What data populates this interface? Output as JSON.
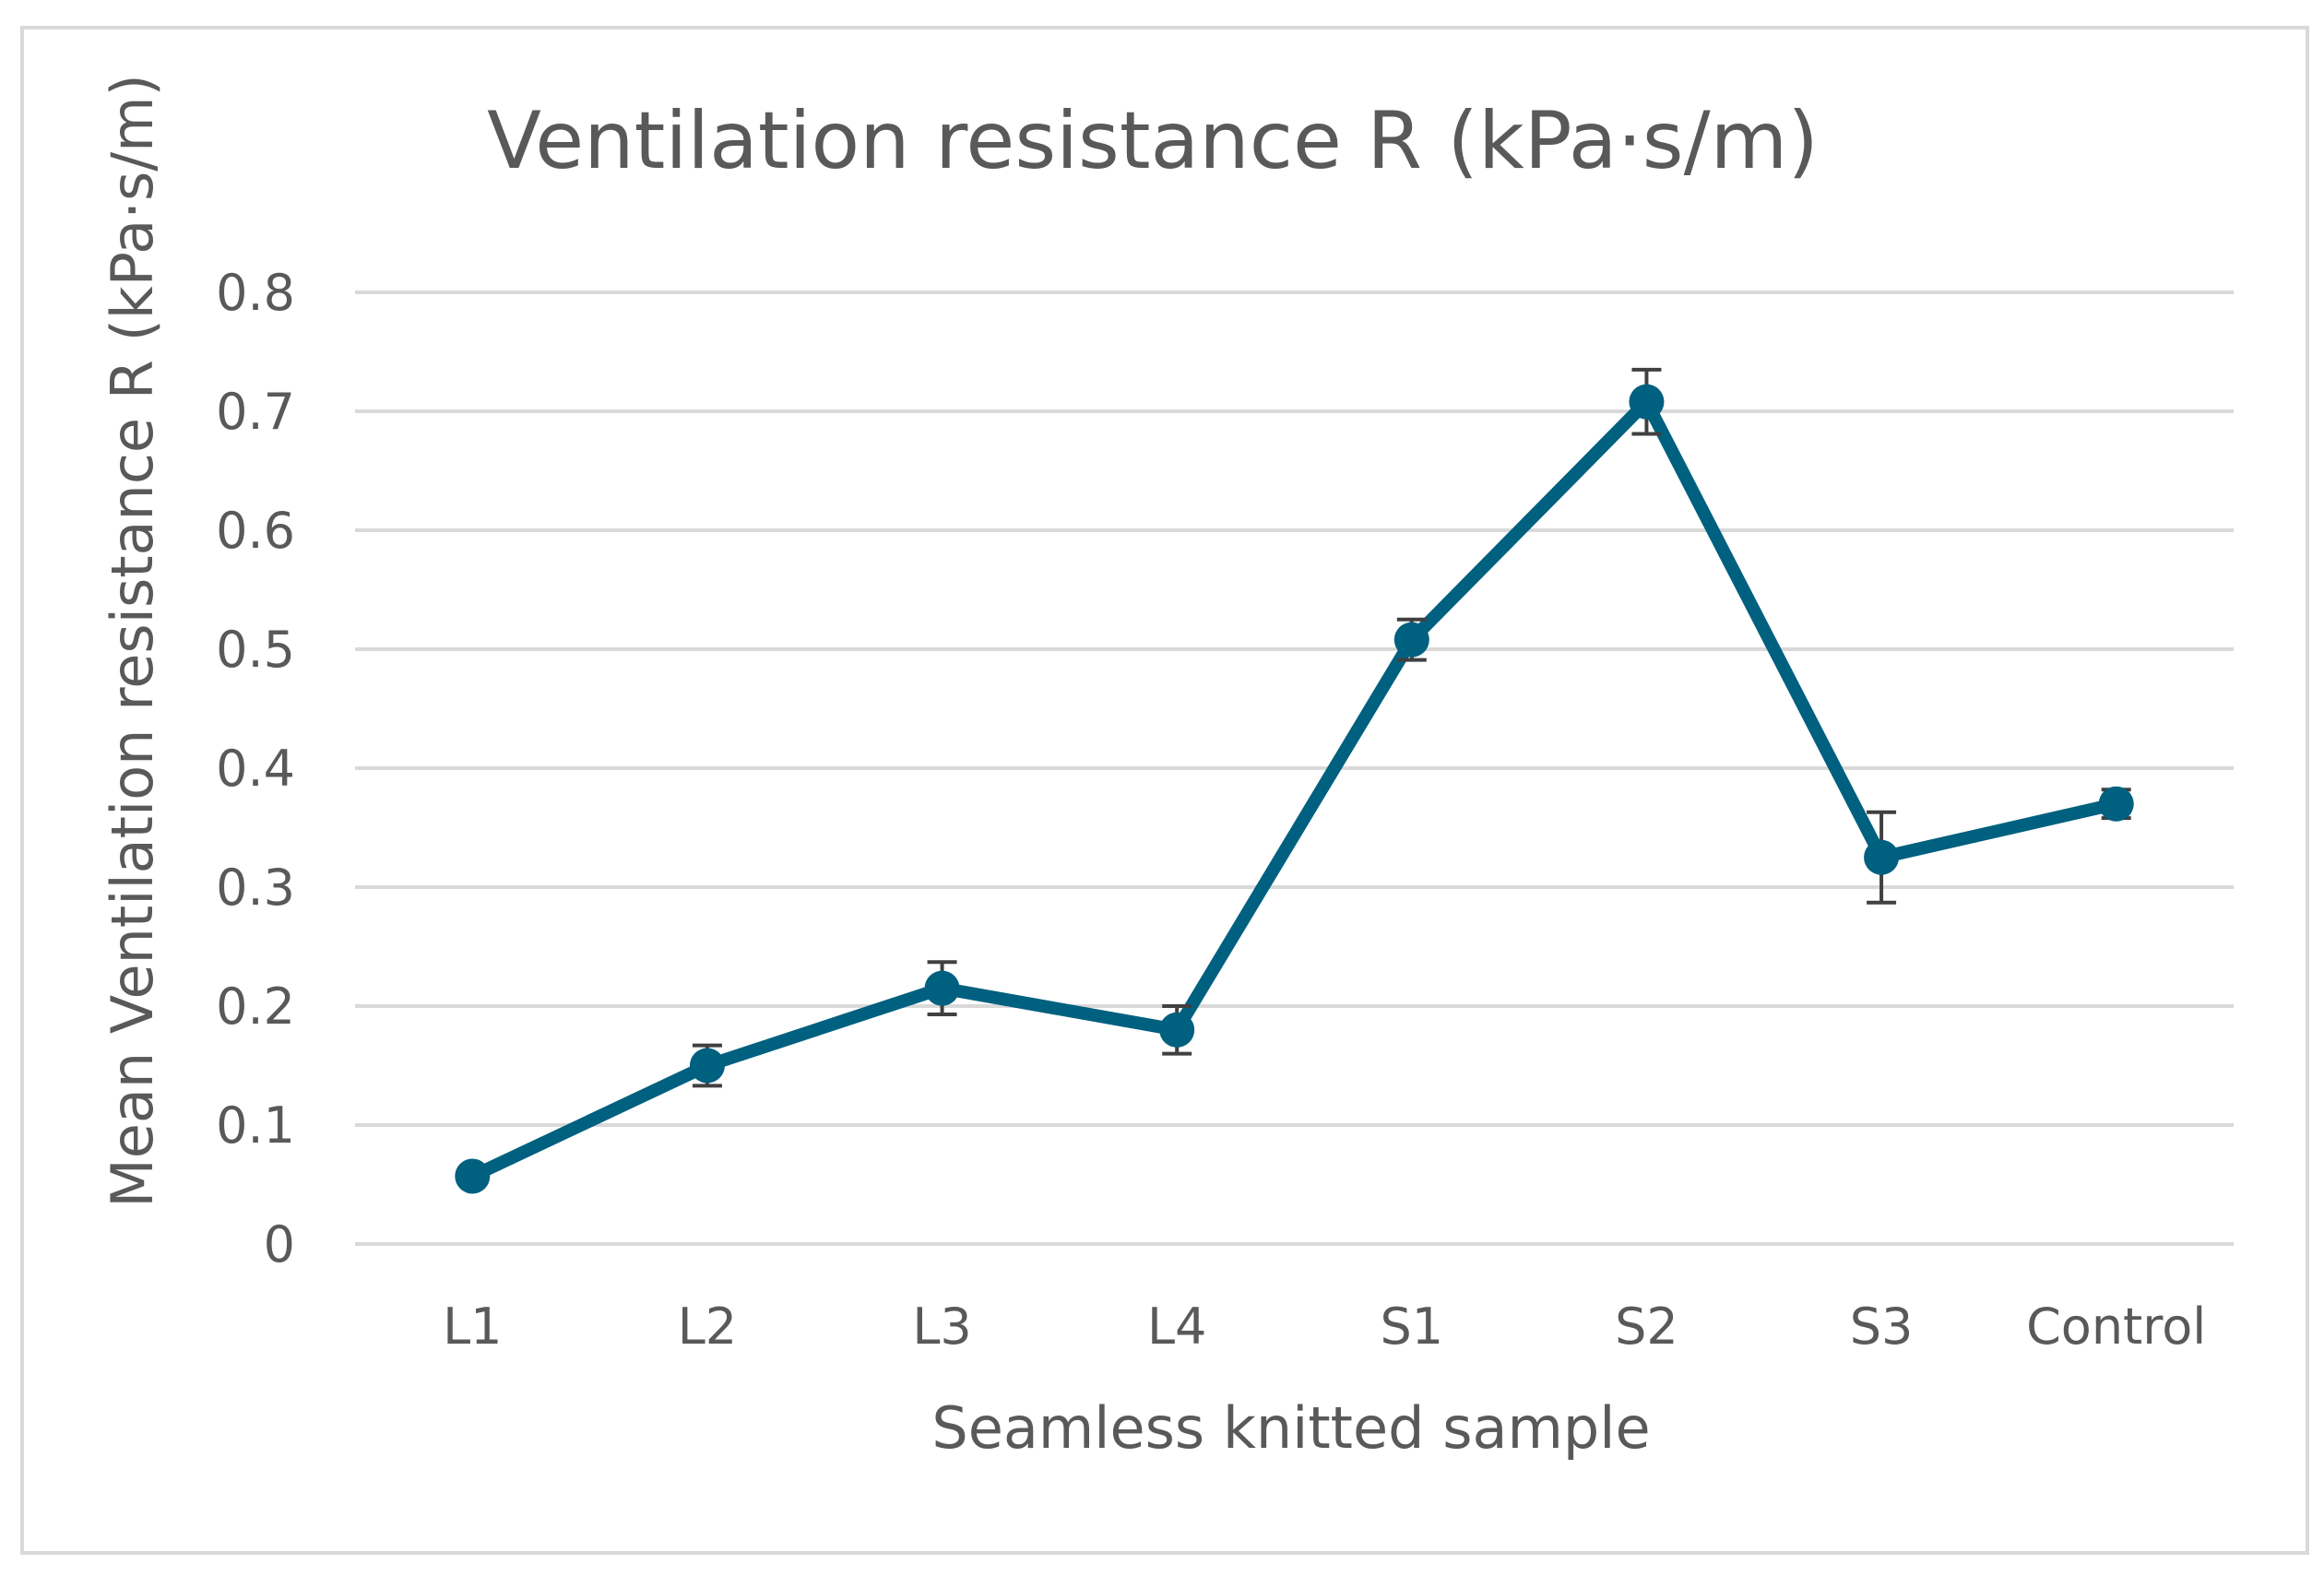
{
  "chart_data": {
    "type": "line",
    "title": "Ventilation resistance R (kPa·s/m)",
    "xlabel": "Seamless knitted sample",
    "ylabel": "Mean Ventilation resistance R (kPa·s/m)",
    "categories": [
      "L1",
      "L2",
      "L3",
      "L4",
      "S1",
      "S2",
      "S3",
      "Control"
    ],
    "series": [
      {
        "name": "Mean Ventilation resistance R",
        "values": [
          0.057,
          0.15,
          0.215,
          0.18,
          0.508,
          0.708,
          0.325,
          0.37
        ],
        "error": [
          0.003,
          0.017,
          0.022,
          0.02,
          0.017,
          0.027,
          0.038,
          0.012
        ],
        "color": "#00607f"
      }
    ],
    "ylim": [
      0,
      0.8
    ],
    "yticks": [
      "0",
      "0.1",
      "0.2",
      "0.3",
      "0.4",
      "0.5",
      "0.6",
      "0.7",
      "0.8"
    ],
    "grid": true,
    "legend": "none"
  }
}
